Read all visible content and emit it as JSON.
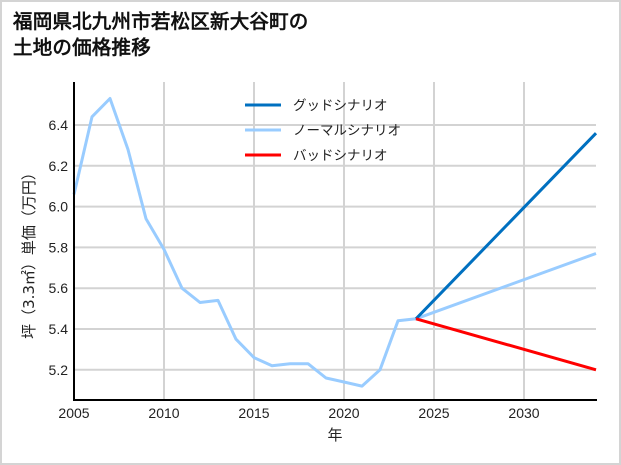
{
  "title": {
    "line1": "福岡県北九州市若松区新大谷町の",
    "line2": "土地の価格推移"
  },
  "chart_data": {
    "type": "line",
    "title": "福岡県北九州市若松区新大谷町の土地の価格推移",
    "xlabel": "年",
    "ylabel": "坪（3.3㎡）単価（万円）",
    "xlim": [
      2005,
      2034
    ],
    "ylim": [
      5.05,
      6.6
    ],
    "x_ticks": [
      2005,
      2010,
      2015,
      2020,
      2025,
      2030
    ],
    "y_ticks": [
      5.2,
      5.4,
      5.6,
      5.8,
      6.0,
      6.2,
      6.4
    ],
    "grid": true,
    "legend_position": "upper center",
    "series": [
      {
        "name": "グッドシナリオ",
        "color": "#0070c0",
        "x": [
          2024,
          2034
        ],
        "values": [
          5.45,
          6.36
        ]
      },
      {
        "name": "ノーマルシナリオ",
        "color": "#99ccff",
        "x": [
          2005,
          2006,
          2007,
          2008,
          2009,
          2010,
          2011,
          2012,
          2013,
          2014,
          2015,
          2016,
          2017,
          2018,
          2019,
          2020,
          2021,
          2022,
          2023,
          2024,
          2034
        ],
        "values": [
          6.06,
          6.44,
          6.53,
          6.28,
          5.94,
          5.79,
          5.6,
          5.53,
          5.54,
          5.35,
          5.26,
          5.22,
          5.23,
          5.23,
          5.16,
          5.14,
          5.12,
          5.2,
          5.44,
          5.45,
          5.77
        ]
      },
      {
        "name": "バッドシナリオ",
        "color": "#ff0000",
        "x": [
          2024,
          2034
        ],
        "values": [
          5.45,
          5.2
        ]
      }
    ]
  },
  "axes": {
    "x_tick_labels": [
      "2005",
      "2010",
      "2015",
      "2020",
      "2025",
      "2030"
    ],
    "y_tick_labels": [
      "6.4",
      "6.2",
      "6.0",
      "5.8",
      "5.6",
      "5.4",
      "5.2"
    ],
    "xlabel": "年",
    "ylabel": "坪（3.3㎡）単価（万円）"
  },
  "legend": {
    "items": [
      {
        "label": "グッドシナリオ",
        "color": "#0070c0"
      },
      {
        "label": "ノーマルシナリオ",
        "color": "#99ccff"
      },
      {
        "label": "バッドシナリオ",
        "color": "#ff0000"
      }
    ]
  }
}
